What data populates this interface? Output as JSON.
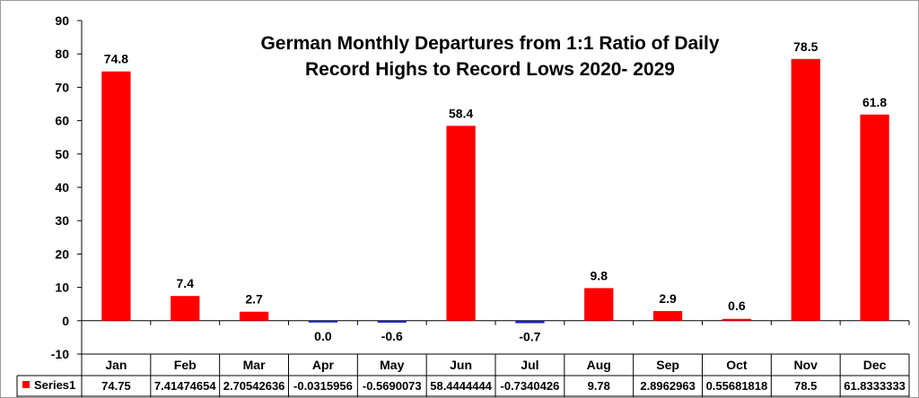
{
  "chart_data": {
    "type": "bar",
    "title_lines": [
      "German Monthly Departures from 1:1 Ratio of Daily",
      "Record Highs to Record Lows 2020- 2029"
    ],
    "categories": [
      "Jan",
      "Feb",
      "Mar",
      "Apr",
      "May",
      "Jun",
      "Jul",
      "Aug",
      "Sep",
      "Oct",
      "Nov",
      "Dec"
    ],
    "series": [
      {
        "name": "Series1",
        "values": [
          74.75,
          7.41474654,
          2.70542636,
          -0.0315956,
          -0.5690073,
          58.4444444,
          -0.7340426,
          9.78,
          2.8962963,
          0.55681818,
          78.5,
          61.8333333
        ],
        "data_labels": [
          "74.8",
          "7.4",
          "2.7",
          "0.0",
          "-0.6",
          "58.4",
          "-0.7",
          "9.8",
          "2.9",
          "0.6",
          "78.5",
          "61.8"
        ],
        "table_values": [
          "74.75",
          "7.41474654",
          "2.70542636",
          "-0.0315956",
          "-0.5690073",
          "58.4444444",
          "-0.7340426",
          "9.78",
          "2.8962963",
          "0.55681818",
          "78.5",
          "61.8333333"
        ]
      }
    ],
    "yticks": [
      -10,
      0,
      10,
      20,
      30,
      40,
      50,
      60,
      70,
      80,
      90
    ],
    "ylim": [
      -10,
      90
    ],
    "xlabel": "",
    "ylabel": "",
    "grid": false,
    "legend": "data-table",
    "colors": {
      "positive": "#ff0000",
      "negative": "#1f1fcc",
      "axis": "#000000",
      "table_border": "#000000"
    }
  }
}
